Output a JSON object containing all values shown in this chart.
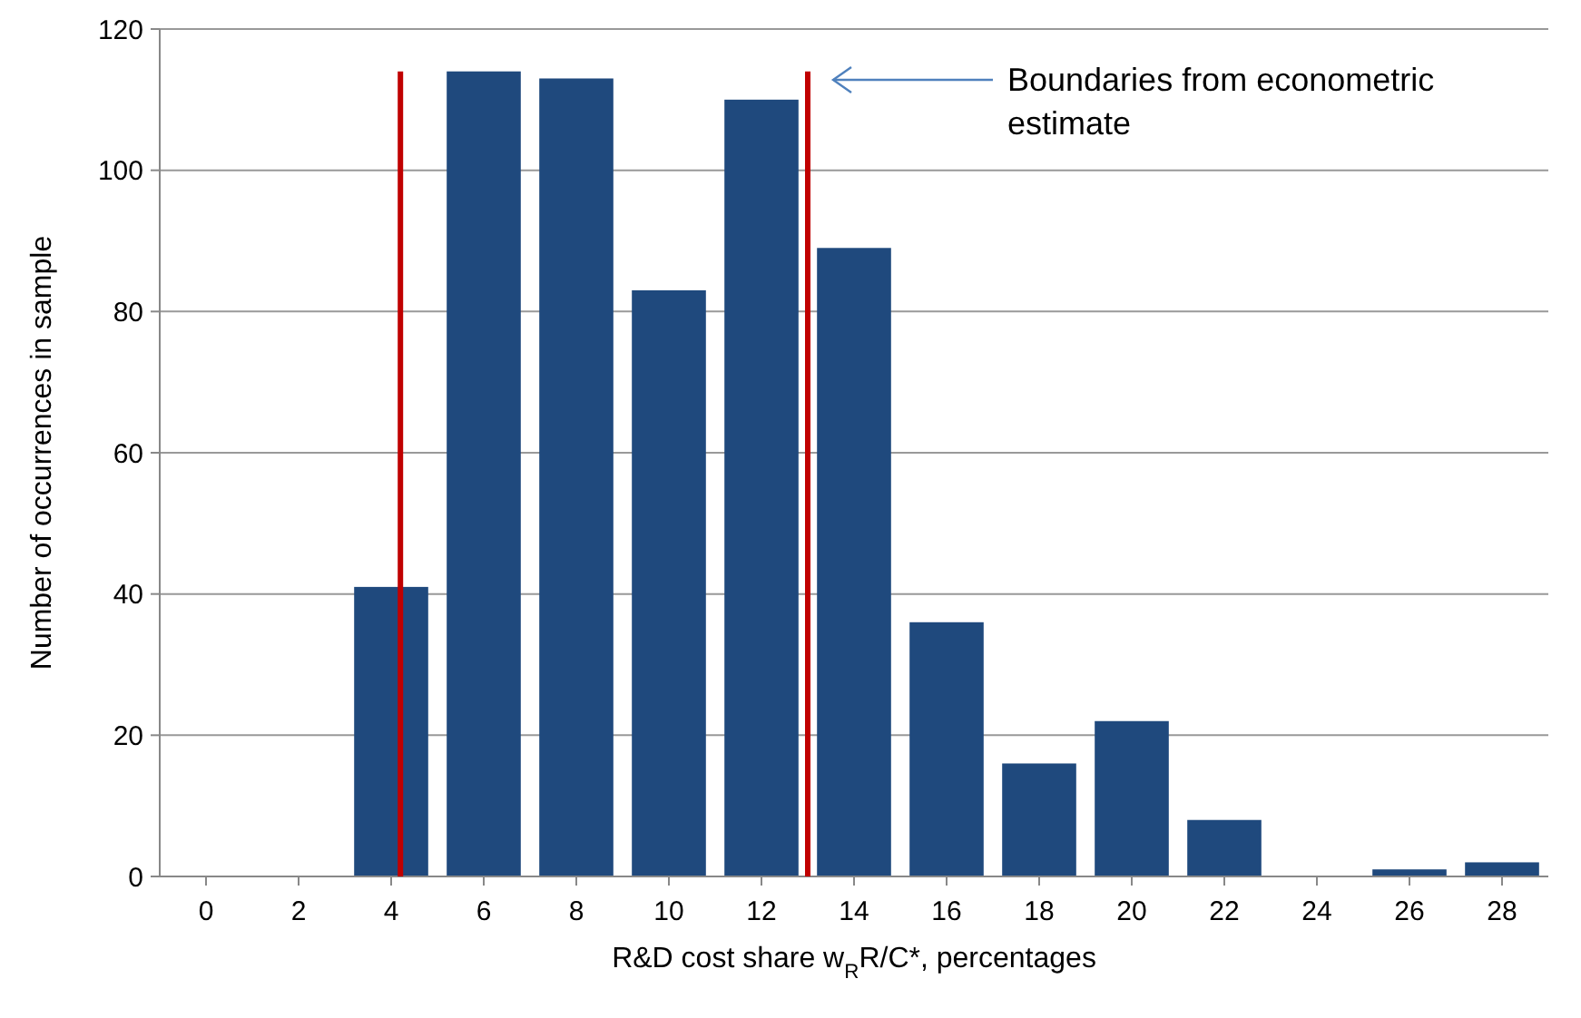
{
  "chart_data": {
    "type": "bar",
    "xlabel": "R&D cost share w$_{R}$R/C*, percentages",
    "ylabel": "Number of occurrences in sample",
    "x": [
      0,
      2,
      4,
      6,
      8,
      10,
      12,
      14,
      16,
      18,
      20,
      22,
      24,
      26,
      28
    ],
    "values": [
      0,
      0,
      41,
      114,
      113,
      83,
      110,
      89,
      36,
      16,
      22,
      8,
      0,
      1,
      2
    ],
    "color": "#1f497d",
    "xlim": [
      -1,
      29
    ],
    "xticks": [
      0,
      2,
      4,
      6,
      8,
      10,
      12,
      14,
      16,
      18,
      20,
      22,
      24,
      26,
      28
    ],
    "ylim": [
      0,
      120
    ],
    "yticks": [
      0,
      20,
      40,
      60,
      80,
      100,
      120
    ],
    "grid": "y",
    "ref_lines": [
      {
        "axis": "x",
        "value": 4.2,
        "color": "#c00000"
      },
      {
        "axis": "x",
        "value": 13.0,
        "color": "#c00000"
      }
    ],
    "annotations": [
      "Boundaries from econometric estimate"
    ]
  }
}
